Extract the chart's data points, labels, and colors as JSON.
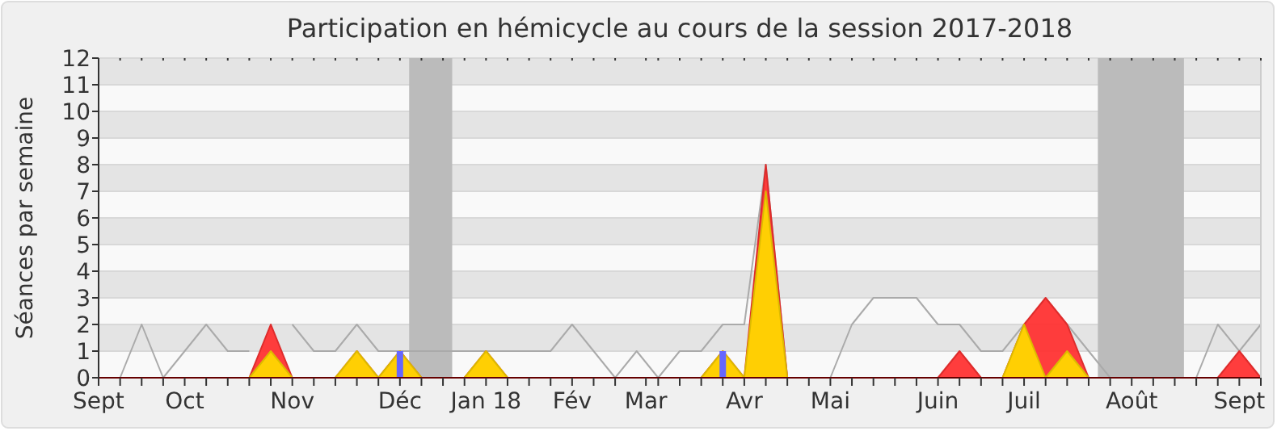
{
  "chart_data": {
    "type": "line",
    "title": "Participation en hémicycle au cours de la session 2017-2018",
    "ylabel": "Séances par semaine",
    "x": [
      "2017-09-04",
      "2017-09-11",
      "2017-09-18",
      "2017-09-25",
      "2017-10-02",
      "2017-10-09",
      "2017-10-16",
      "2017-10-23",
      "2017-10-30",
      "2017-11-06",
      "2017-11-13",
      "2017-11-20",
      "2017-11-27",
      "2017-12-04",
      "2017-12-11",
      "2017-12-18",
      "2017-12-25",
      "2018-01-01",
      "2018-01-08",
      "2018-01-15",
      "2018-01-22",
      "2018-01-29",
      "2018-02-05",
      "2018-02-12",
      "2018-02-19",
      "2018-02-26",
      "2018-03-05",
      "2018-03-12",
      "2018-03-19",
      "2018-03-26",
      "2018-04-02",
      "2018-04-09",
      "2018-04-16",
      "2018-04-23",
      "2018-04-30",
      "2018-05-07",
      "2018-05-14",
      "2018-05-21",
      "2018-05-28",
      "2018-06-04",
      "2018-06-11",
      "2018-06-18",
      "2018-06-25",
      "2018-07-02",
      "2018-07-09",
      "2018-07-16",
      "2018-07-23",
      "2018-07-30",
      "2018-08-06",
      "2018-08-13",
      "2018-08-20",
      "2018-08-27",
      "2018-09-03",
      "2018-09-10",
      "2018-09-17"
    ],
    "series": [
      {
        "color": "#aaaaaa",
        "values": [
          null,
          0,
          2,
          0,
          1,
          2,
          1,
          1,
          null,
          2,
          1,
          1,
          2,
          1,
          1,
          1,
          1,
          1,
          1,
          1,
          1,
          1,
          2,
          1,
          0,
          1,
          0,
          1,
          1,
          2,
          2,
          8,
          0,
          0,
          0,
          2,
          3,
          3,
          3,
          2,
          2,
          1,
          1,
          2,
          null,
          2,
          1,
          0,
          0,
          0,
          0,
          0,
          2,
          1,
          2
        ]
      },
      {
        "type": "area",
        "color": "#ff3333",
        "values": [
          0,
          0,
          0,
          0,
          0,
          0,
          0,
          0,
          2,
          0,
          0,
          0,
          1,
          0,
          1,
          0,
          0,
          0,
          1,
          0,
          0,
          0,
          0,
          0,
          0,
          0,
          0,
          0,
          0,
          1,
          0,
          8,
          0,
          0,
          0,
          0,
          0,
          0,
          0,
          0,
          1,
          0,
          0,
          2,
          3,
          2,
          0,
          0,
          0,
          0,
          0,
          0,
          0,
          1,
          0
        ]
      },
      {
        "type": "area",
        "color": "#ffd700",
        "values": [
          0,
          0,
          0,
          0,
          0,
          0,
          0,
          0,
          1,
          0,
          0,
          0,
          1,
          0,
          1,
          0,
          0,
          0,
          1,
          0,
          0,
          0,
          0,
          0,
          0,
          0,
          0,
          0,
          0,
          1,
          0,
          7,
          0,
          0,
          0,
          0,
          0,
          0,
          0,
          0,
          0,
          0,
          0,
          2,
          0,
          1,
          0,
          0,
          0,
          0,
          0,
          0,
          0,
          0,
          0
        ]
      },
      {
        "type": "bar",
        "color": "#6666ff",
        "values": [
          null,
          null,
          null,
          null,
          null,
          null,
          null,
          null,
          null,
          null,
          null,
          null,
          null,
          null,
          1,
          null,
          null,
          null,
          null,
          null,
          null,
          null,
          null,
          null,
          null,
          null,
          null,
          null,
          null,
          1,
          null,
          null,
          null,
          null,
          null,
          null,
          null,
          null,
          null,
          null,
          null,
          null,
          null,
          null,
          null,
          null,
          null,
          null,
          null,
          null,
          null,
          null,
          null,
          null,
          null
        ]
      }
    ],
    "xlim": [
      "2017-09-04",
      "2018-09-17"
    ],
    "xticks": [
      {
        "value": "2017-09-04",
        "label": "Sept"
      },
      {
        "value": "2017-09-11",
        "label": null
      },
      {
        "value": "2017-09-18",
        "label": null
      },
      {
        "value": "2017-09-25",
        "label": null
      },
      {
        "value": "2017-10-02",
        "label": "Oct"
      },
      {
        "value": "2017-10-09",
        "label": null
      },
      {
        "value": "2017-10-16",
        "label": null
      },
      {
        "value": "2017-10-23",
        "label": null
      },
      {
        "value": "2017-10-30",
        "label": null
      },
      {
        "value": "2017-11-06",
        "label": "Nov"
      },
      {
        "value": "2017-11-13",
        "label": null
      },
      {
        "value": "2017-11-20",
        "label": null
      },
      {
        "value": "2017-11-27",
        "label": null
      },
      {
        "value": "2017-12-04",
        "label": null
      },
      {
        "value": "2017-12-11",
        "label": "Déc"
      },
      {
        "value": "2017-12-18",
        "label": null
      },
      {
        "value": "2017-12-25",
        "label": null
      },
      {
        "value": "2018-01-01",
        "label": null
      },
      {
        "value": "2018-01-08",
        "label": "Jan 18"
      },
      {
        "value": "2018-01-15",
        "label": null
      },
      {
        "value": "2018-01-22",
        "label": null
      },
      {
        "value": "2018-01-29",
        "label": null
      },
      {
        "value": "2018-02-05",
        "label": "Fév"
      },
      {
        "value": "2018-02-12",
        "label": null
      },
      {
        "value": "2018-02-19",
        "label": null
      },
      {
        "value": "2018-03-01",
        "label": "Mar"
      },
      {
        "value": "2018-03-05",
        "label": null
      },
      {
        "value": "2018-03-12",
        "label": null
      },
      {
        "value": "2018-03-19",
        "label": null
      },
      {
        "value": "2018-03-26",
        "label": null
      },
      {
        "value": "2018-04-02",
        "label": "Avr"
      },
      {
        "value": "2018-04-09",
        "label": null
      },
      {
        "value": "2018-04-16",
        "label": null
      },
      {
        "value": "2018-04-23",
        "label": null
      },
      {
        "value": "2018-04-30",
        "label": "Mai"
      },
      {
        "value": "2018-05-07",
        "label": null
      },
      {
        "value": "2018-05-14",
        "label": null
      },
      {
        "value": "2018-05-21",
        "label": null
      },
      {
        "value": "2018-05-28",
        "label": null
      },
      {
        "value": "2018-06-04",
        "label": "Juin"
      },
      {
        "value": "2018-06-11",
        "label": null
      },
      {
        "value": "2018-06-18",
        "label": null
      },
      {
        "value": "2018-06-25",
        "label": null
      },
      {
        "value": "2018-07-02",
        "label": "Juil"
      },
      {
        "value": "2018-07-09",
        "label": null
      },
      {
        "value": "2018-07-16",
        "label": null
      },
      {
        "value": "2018-07-23",
        "label": null
      },
      {
        "value": "2018-07-30",
        "label": null
      },
      {
        "value": "2018-08-06",
        "label": "Août"
      },
      {
        "value": "2018-08-13",
        "label": null
      },
      {
        "value": "2018-08-20",
        "label": null
      },
      {
        "value": "2018-08-27",
        "label": null
      },
      {
        "value": "2018-09-03",
        "label": null
      },
      {
        "value": "2018-09-10",
        "label": "Sept"
      },
      {
        "value": "2018-09-17",
        "label": null
      }
    ],
    "ylim": [
      0,
      12
    ],
    "yticks": [
      0,
      1,
      2,
      3,
      4,
      5,
      6,
      7,
      8,
      9,
      10,
      11,
      12
    ],
    "grid": "y",
    "bands": [
      {
        "axis": "x",
        "from": "2017-12-14",
        "to": "2017-12-28",
        "color": "#bbbbbb"
      },
      {
        "axis": "x",
        "from": "2018-07-26",
        "to": "2018-08-23",
        "color": "#bbbbbb"
      }
    ]
  }
}
